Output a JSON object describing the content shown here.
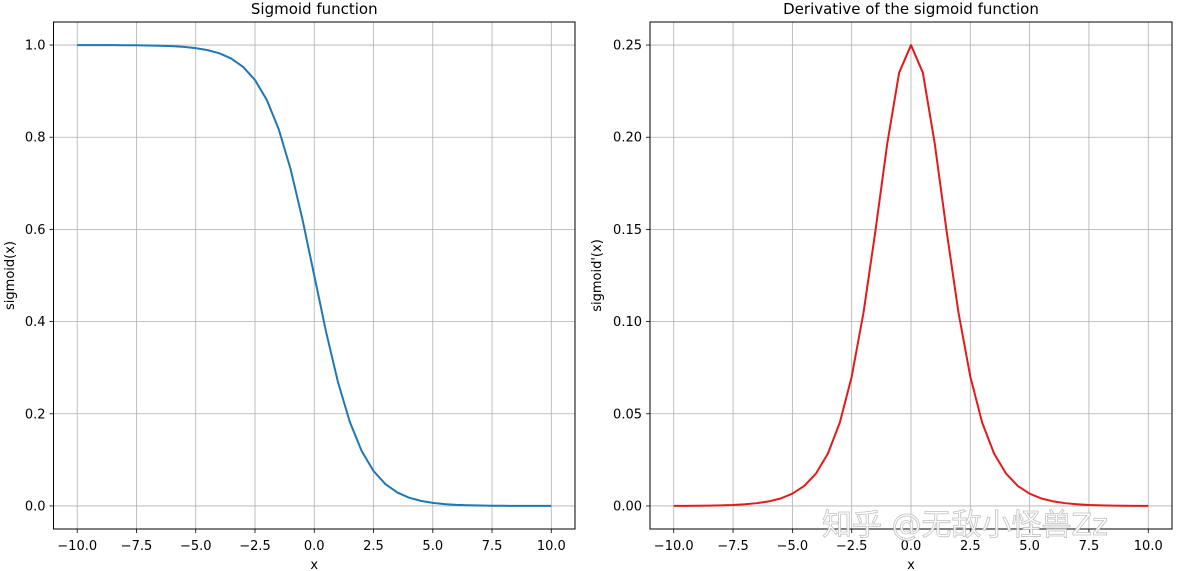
{
  "chart_data": [
    {
      "type": "line",
      "title": "Sigmoid function",
      "xlabel": "x",
      "ylabel": "sigmoid(x)",
      "xlim": [
        -11,
        11
      ],
      "ylim": [
        -0.05,
        1.05
      ],
      "grid": true,
      "xticks": [
        -10.0,
        -7.5,
        -5.0,
        -2.5,
        0.0,
        2.5,
        5.0,
        7.5,
        10.0
      ],
      "xtick_labels": [
        "−10.0",
        "−7.5",
        "−5.0",
        "−2.5",
        "0.0",
        "2.5",
        "5.0",
        "7.5",
        "10.0"
      ],
      "yticks": [
        0.0,
        0.2,
        0.4,
        0.6,
        0.8,
        1.0
      ],
      "ytick_labels": [
        "0.0",
        "0.2",
        "0.4",
        "0.6",
        "0.8",
        "1.0"
      ],
      "color": "#1f77b4",
      "series": [
        {
          "name": "sigmoid",
          "x": [
            -10,
            -9.5,
            -9,
            -8.5,
            -8,
            -7.5,
            -7,
            -6.5,
            -6,
            -5.5,
            -5,
            -4.5,
            -4,
            -3.5,
            -3,
            -2.5,
            -2,
            -1.5,
            -1,
            -0.5,
            0,
            0.5,
            1,
            1.5,
            2,
            2.5,
            3,
            3.5,
            4,
            4.5,
            5,
            5.5,
            6,
            6.5,
            7,
            7.5,
            8,
            8.5,
            9,
            9.5,
            10
          ],
          "y": [
            0.99995,
            0.99993,
            0.99988,
            0.9998,
            0.99966,
            0.99945,
            0.99909,
            0.9985,
            0.99753,
            0.99593,
            0.99331,
            0.98901,
            0.98201,
            0.97069,
            0.95257,
            0.92414,
            0.8808,
            0.81757,
            0.73106,
            0.62246,
            0.5,
            0.37754,
            0.26894,
            0.18243,
            0.1192,
            0.07586,
            0.04743,
            0.02931,
            0.01799,
            0.01099,
            0.00669,
            0.00407,
            0.00247,
            0.0015,
            0.00091,
            0.00055,
            0.00034,
            0.0002,
            0.00012,
            7e-05,
            5e-05
          ]
        }
      ]
    },
    {
      "type": "line",
      "title": "Derivative of the sigmoid function",
      "xlabel": "x",
      "ylabel": "sigmoid'(x)",
      "xlim": [
        -11,
        11
      ],
      "ylim": [
        -0.0125,
        0.2625
      ],
      "grid": true,
      "xticks": [
        -10.0,
        -7.5,
        -5.0,
        -2.5,
        0.0,
        2.5,
        5.0,
        7.5,
        10.0
      ],
      "xtick_labels": [
        "−10.0",
        "−7.5",
        "−5.0",
        "−2.5",
        "0.0",
        "2.5",
        "5.0",
        "7.5",
        "10.0"
      ],
      "yticks": [
        0.0,
        0.05,
        0.1,
        0.15,
        0.2,
        0.25
      ],
      "ytick_labels": [
        "0.00",
        "0.05",
        "0.10",
        "0.15",
        "0.20",
        "0.25"
      ],
      "color": "#e31a1c",
      "series": [
        {
          "name": "sigmoid derivative",
          "x": [
            -10,
            -9.5,
            -9,
            -8.5,
            -8,
            -7.5,
            -7,
            -6.5,
            -6,
            -5.5,
            -5,
            -4.5,
            -4,
            -3.5,
            -3,
            -2.5,
            -2,
            -1.5,
            -1,
            -0.5,
            0,
            0.5,
            1,
            1.5,
            2,
            2.5,
            3,
            3.5,
            4,
            4.5,
            5,
            5.5,
            6,
            6.5,
            7,
            7.5,
            8,
            8.5,
            9,
            9.5,
            10
          ],
          "y": [
            4.54e-05,
            7.48e-05,
            0.000123,
            0.000203,
            0.000335,
            0.000553,
            0.000911,
            0.001501,
            0.002467,
            0.004051,
            0.006648,
            0.010866,
            0.017663,
            0.028453,
            0.045177,
            0.070104,
            0.104994,
            0.149146,
            0.196612,
            0.235004,
            0.25,
            0.235004,
            0.196612,
            0.149146,
            0.104994,
            0.070104,
            0.045177,
            0.028453,
            0.017663,
            0.010866,
            0.006648,
            0.004051,
            0.002467,
            0.001501,
            0.000911,
            0.000553,
            0.000335,
            0.000203,
            0.000123,
            7.48e-05,
            4.54e-05
          ]
        }
      ]
    }
  ],
  "watermark": "知乎 @无敌小怪兽Zz"
}
